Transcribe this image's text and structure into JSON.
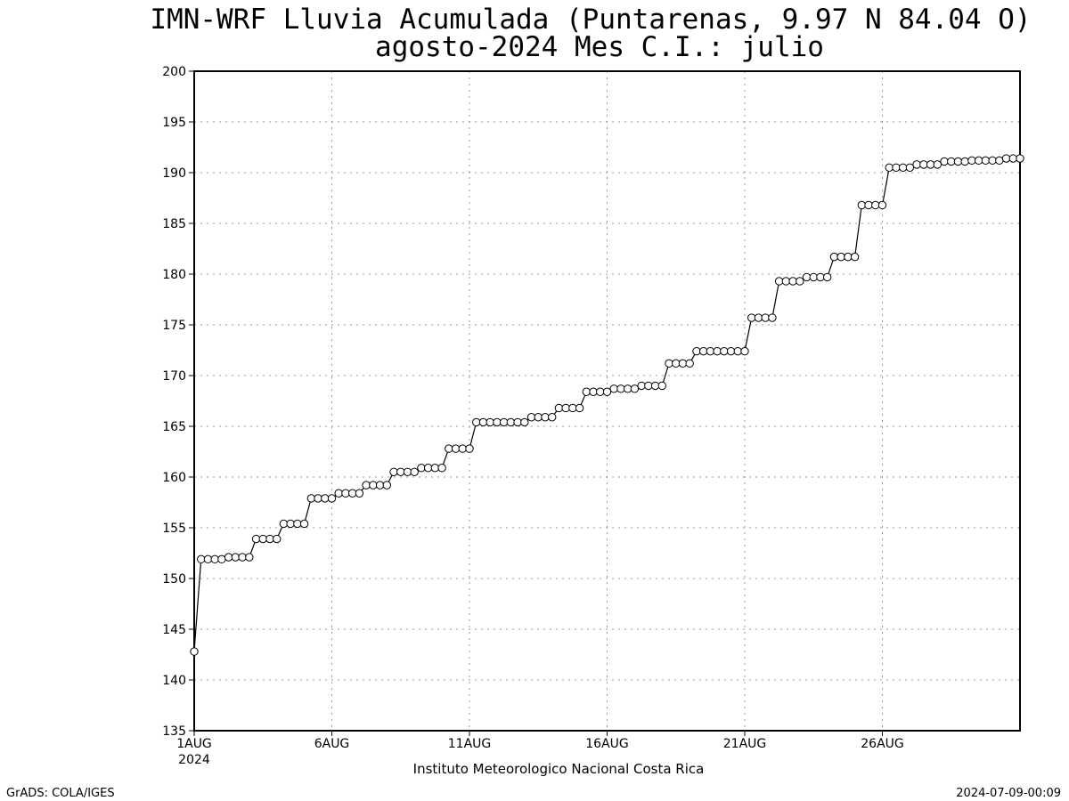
{
  "header": {
    "title_line1": "IMN-WRF  Lluvia Acumulada (Puntarenas, 9.97  N 84.04  O)",
    "title_line2": "agosto-2024 Mes C.I.: julio"
  },
  "footer": {
    "credit": "Instituto Meteorologico Nacional Costa Rica",
    "grads": "GrADS: COLA/IGES",
    "timestamp": "2024-07-09-00:09"
  },
  "chart_data": {
    "type": "line",
    "marker": "open-circle",
    "ylim": [
      135,
      200
    ],
    "ytick_step": 5,
    "xlim": [
      1,
      31
    ],
    "x_ticks": [
      {
        "x": 1,
        "label": "1AUG",
        "sublabel": "2024"
      },
      {
        "x": 6,
        "label": "6AUG"
      },
      {
        "x": 11,
        "label": "11AUG"
      },
      {
        "x": 16,
        "label": "16AUG"
      },
      {
        "x": 21,
        "label": "21AUG"
      },
      {
        "x": 26,
        "label": "26AUG"
      }
    ],
    "grid": true,
    "x": [
      1,
      1.25,
      1.5,
      1.75,
      2,
      2.25,
      2.5,
      2.75,
      3,
      3.25,
      3.5,
      3.75,
      4,
      4.25,
      4.5,
      4.75,
      5,
      5.25,
      5.5,
      5.75,
      6,
      6.25,
      6.5,
      6.75,
      7,
      7.25,
      7.5,
      7.75,
      8,
      8.25,
      8.5,
      8.75,
      9,
      9.25,
      9.5,
      9.75,
      10,
      10.25,
      10.5,
      10.75,
      11,
      11.25,
      11.5,
      11.75,
      12,
      12.25,
      12.5,
      12.75,
      13,
      13.25,
      13.5,
      13.75,
      14,
      14.25,
      14.5,
      14.75,
      15,
      15.25,
      15.5,
      15.75,
      16,
      16.25,
      16.5,
      16.75,
      17,
      17.25,
      17.5,
      17.75,
      18,
      18.25,
      18.5,
      18.75,
      19,
      19.25,
      19.5,
      19.75,
      20,
      20.25,
      20.5,
      20.75,
      21,
      21.25,
      21.5,
      21.75,
      22,
      22.25,
      22.5,
      22.75,
      23,
      23.25,
      23.5,
      23.75,
      24,
      24.25,
      24.5,
      24.75,
      25,
      25.25,
      25.5,
      25.75,
      26,
      26.25,
      26.5,
      26.75,
      27,
      27.25,
      27.5,
      27.75,
      28,
      28.25,
      28.5,
      28.75,
      29,
      29.25,
      29.5,
      29.75,
      30,
      30.25,
      30.5,
      30.75,
      31
    ],
    "values": [
      142.8,
      151.9,
      151.9,
      151.9,
      151.9,
      152.1,
      152.1,
      152.1,
      152.1,
      153.9,
      153.9,
      153.9,
      153.9,
      155.4,
      155.4,
      155.4,
      155.4,
      157.9,
      157.9,
      157.9,
      157.9,
      158.4,
      158.4,
      158.4,
      158.4,
      159.2,
      159.2,
      159.2,
      159.2,
      160.5,
      160.5,
      160.5,
      160.5,
      160.9,
      160.9,
      160.9,
      160.9,
      162.8,
      162.8,
      162.8,
      162.8,
      165.4,
      165.4,
      165.4,
      165.4,
      165.4,
      165.4,
      165.4,
      165.4,
      165.9,
      165.9,
      165.9,
      165.9,
      166.8,
      166.8,
      166.8,
      166.8,
      168.4,
      168.4,
      168.4,
      168.4,
      168.7,
      168.7,
      168.7,
      168.7,
      169.0,
      169.0,
      169.0,
      169.0,
      171.2,
      171.2,
      171.2,
      171.2,
      172.4,
      172.4,
      172.4,
      172.4,
      172.4,
      172.4,
      172.4,
      172.4,
      175.7,
      175.7,
      175.7,
      175.7,
      179.3,
      179.3,
      179.3,
      179.3,
      179.7,
      179.7,
      179.7,
      179.7,
      181.7,
      181.7,
      181.7,
      181.7,
      186.8,
      186.8,
      186.8,
      186.8,
      190.5,
      190.5,
      190.5,
      190.5,
      190.8,
      190.8,
      190.8,
      190.8,
      191.1,
      191.1,
      191.1,
      191.1,
      191.2,
      191.2,
      191.2,
      191.2,
      191.2,
      191.4,
      191.4,
      191.4
    ]
  }
}
